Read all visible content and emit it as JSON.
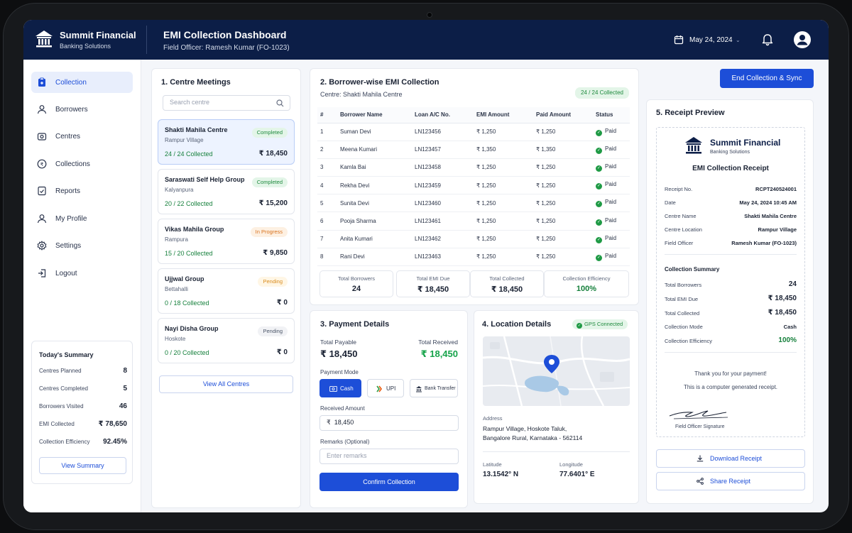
{
  "header": {
    "brand_name": "Summit Financial",
    "brand_sub": "Banking Solutions",
    "title": "EMI Collection Dashboard",
    "subtitle": "Field Officer: Ramesh Kumar (FO-1023)",
    "date": "May 24, 2024",
    "chevron": "⌄",
    "icons": [
      "bank-icon",
      "calendar-icon",
      "bell-icon",
      "user-avatar-icon"
    ]
  },
  "sidebar": {
    "items": [
      {
        "label": "Collection",
        "icon": "clipboard-icon",
        "active": true
      },
      {
        "label": "Borrowers",
        "icon": "user-icon"
      },
      {
        "label": "Centres",
        "icon": "location-icon"
      },
      {
        "label": "Collections",
        "icon": "rupee-circle-icon"
      },
      {
        "label": "Reports",
        "icon": "report-icon"
      },
      {
        "label": "My Profile",
        "icon": "profile-icon"
      },
      {
        "label": "Settings",
        "icon": "gear-icon"
      },
      {
        "label": "Logout",
        "icon": "logout-icon"
      }
    ]
  },
  "summary": {
    "title": "Today's Summary",
    "rows": [
      {
        "label": "Centres Planned",
        "value": "8"
      },
      {
        "label": "Centres Completed",
        "value": "5"
      },
      {
        "label": "Borrowers Visited",
        "value": "46"
      },
      {
        "label": "EMI Collected",
        "value": "₹ 78,650"
      },
      {
        "label": "Collection Efficiency",
        "value": "92.45%"
      }
    ],
    "button": "View Summary"
  },
  "centres": {
    "title": "1.  Centre Meetings",
    "search_placeholder": "Search centre",
    "items": [
      {
        "name": "Shakti Mahila Centre",
        "location": "Rampur Village",
        "collected": "24 / 24 Collected",
        "amount": "₹ 18,450",
        "status": "Completed"
      },
      {
        "name": "Saraswati Self Help Group",
        "location": "Kalyanpura",
        "collected": "20 / 22 Collected",
        "amount": "₹ 15,200",
        "status": "Completed"
      },
      {
        "name": "Vikas Mahila Group",
        "location": "Rampura",
        "collected": "15 / 20 Collected",
        "amount": "₹ 9,850",
        "status": "In Progress"
      },
      {
        "name": "Ujjwal Group",
        "location": "Bettahalli",
        "collected": "0 / 18 Collected",
        "amount": "₹ 0",
        "status": "Pending"
      },
      {
        "name": "Nayi Disha Group",
        "location": "Hoskote",
        "collected": "0 / 20 Collected",
        "amount": "₹ 0",
        "status": "Pending"
      }
    ],
    "view_all": "View All Centres"
  },
  "emi": {
    "title": "2.  Borrower-wise EMI Collection",
    "centre": "Centre: Shakti Mahila Centre",
    "badge": "24 / 24 Collected",
    "columns": [
      "#",
      "Borrower Name",
      "Loan A/C No.",
      "EMI Amount",
      "Paid Amount",
      "Status"
    ],
    "rows": [
      [
        "1",
        "Suman Devi",
        "LN123456",
        "₹ 1,250",
        "₹ 1,250",
        "Paid"
      ],
      [
        "2",
        "Meena Kumari",
        "LN123457",
        "₹ 1,350",
        "₹ 1,350",
        "Paid"
      ],
      [
        "3",
        "Kamla Bai",
        "LN123458",
        "₹ 1,250",
        "₹ 1,250",
        "Paid"
      ],
      [
        "4",
        "Rekha Devi",
        "LN123459",
        "₹ 1,250",
        "₹ 1,250",
        "Paid"
      ],
      [
        "5",
        "Sunita Devi",
        "LN123460",
        "₹ 1,250",
        "₹ 1,250",
        "Paid"
      ],
      [
        "6",
        "Pooja Sharma",
        "LN123461",
        "₹ 1,250",
        "₹ 1,250",
        "Paid"
      ],
      [
        "7",
        "Anita Kumari",
        "LN123462",
        "₹ 1,250",
        "₹ 1,250",
        "Paid"
      ],
      [
        "8",
        "Rani Devi",
        "LN123463",
        "₹ 1,250",
        "₹ 1,250",
        "Paid"
      ]
    ],
    "stats": [
      {
        "label": "Total Borrowers",
        "value": "24"
      },
      {
        "label": "Total EMI Due",
        "value": "₹ 18,450"
      },
      {
        "label": "Total Collected",
        "value": "₹ 18,450"
      },
      {
        "label": "Collection Efficiency",
        "value": "100%"
      }
    ]
  },
  "payment": {
    "title": "3.  Payment Details",
    "total_payable_label": "Total Payable",
    "total_payable": "₹ 18,450",
    "total_received_label": "Total Received",
    "total_received": "₹ 18,450",
    "mode_label": "Payment Mode",
    "modes": [
      "Cash",
      "UPI",
      "Bank Transfer"
    ],
    "received_label": "Received Amount",
    "received_value": "₹  18,450",
    "remarks_label": "Remarks (Optional)",
    "remarks_placeholder": "Enter remarks",
    "confirm": "Confirm Collection"
  },
  "location": {
    "title": "4.  Location Details",
    "gps": "GPS Connected",
    "address_label": "Address",
    "address_line1": "Rampur Village, Hoskote Taluk,",
    "address_line2": "Bangalore Rural, Karnataka - 562114",
    "lat_label": "Latitude",
    "lat": "13.1542° N",
    "lng_label": "Longitude",
    "lng": "77.6401° E"
  },
  "receipt": {
    "end_button": "End Collection & Sync",
    "title": "5.  Receipt Preview",
    "brand_name": "Summit Financial",
    "brand_sub": "Banking Solutions",
    "doc_title": "EMI Collection Receipt",
    "rows": [
      {
        "label": "Receipt No.",
        "value": "RCPT240524001"
      },
      {
        "label": "Date",
        "value": "May 24, 2024 10:45 AM"
      },
      {
        "label": "Centre Name",
        "value": "Shakti Mahila Centre"
      },
      {
        "label": "Centre Location",
        "value": "Rampur Village"
      },
      {
        "label": "Field Officer",
        "value": "Ramesh Kumar (FO-1023)"
      }
    ],
    "summary_title": "Collection Summary",
    "summary": [
      {
        "label": "Total Borrowers",
        "value": "24"
      },
      {
        "label": "Total EMI Due",
        "value": "₹ 18,450"
      },
      {
        "label": "Total Collected",
        "value": "₹ 18,450"
      },
      {
        "label": "Collection Mode",
        "value": "Cash"
      },
      {
        "label": "Collection Efficiency",
        "value": "100%"
      }
    ],
    "thanks": "Thank you for your payment!",
    "generated": "This is a computer generated receipt.",
    "signature_label": "Field Officer Signature",
    "download": "Download Receipt",
    "share": "Share Receipt"
  },
  "colors": {
    "navy": "#0c1e47",
    "primary": "#1d4ed8",
    "success": "#1f8a3e",
    "warning": "#d9731f"
  }
}
